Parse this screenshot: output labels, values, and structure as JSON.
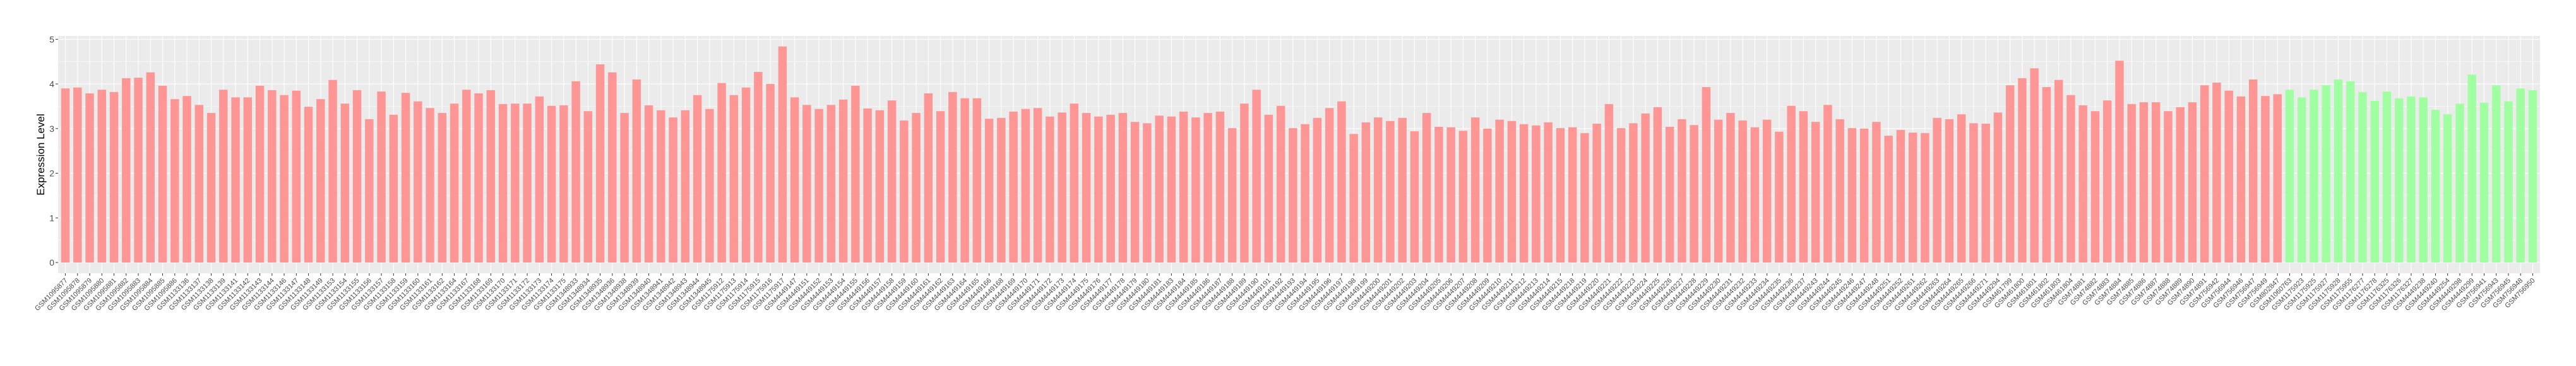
{
  "chart_data": {
    "type": "bar",
    "title": "",
    "xlabel": "",
    "ylabel": "Expression Level",
    "ylim": [
      0,
      5
    ],
    "yticks": [
      "0",
      "1",
      "2",
      "3",
      "4",
      "5"
    ],
    "grid": true,
    "legend": "none",
    "background": "#EBEBEB",
    "series": [
      {
        "color": "#FF9696",
        "categories": [
          "GSM1095877",
          "GSM1095878",
          "GSM1095879",
          "GSM1095880",
          "GSM1095881",
          "GSM1095882",
          "GSM1095883",
          "GSM1095884",
          "GSM1095885",
          "GSM1095886",
          "GSM1133136",
          "GSM1133137",
          "GSM1133138",
          "GSM1133139",
          "GSM1133141",
          "GSM1133142",
          "GSM1133143",
          "GSM1133144",
          "GSM1133146",
          "GSM1133147",
          "GSM1133148",
          "GSM1133149",
          "GSM1133153",
          "GSM1133154",
          "GSM1133155",
          "GSM1133156",
          "GSM1133157",
          "GSM1133158",
          "GSM1133159",
          "GSM1133160",
          "GSM1133161",
          "GSM1133162",
          "GSM1133164",
          "GSM1133167",
          "GSM1133168",
          "GSM1133169",
          "GSM1133170",
          "GSM1133171",
          "GSM1133172",
          "GSM1133173",
          "GSM1133174",
          "GSM1133175",
          "GSM1348933",
          "GSM1348934",
          "GSM1348935",
          "GSM1348936",
          "GSM1348938",
          "GSM1348939",
          "GSM1348940",
          "GSM1348941",
          "GSM1348942",
          "GSM1348943",
          "GSM1348944",
          "GSM1348945",
          "GSM1175912",
          "GSM1175913",
          "GSM1175914",
          "GSM1175915",
          "GSM1175916",
          "GSM1175917",
          "GSM4449147",
          "GSM4449151",
          "GSM4449152",
          "GSM4449153",
          "GSM4449154",
          "GSM4449155",
          "GSM4449156",
          "GSM4449157",
          "GSM4449158",
          "GSM4449159",
          "GSM4449160",
          "GSM4449161",
          "GSM4449162",
          "GSM4449163",
          "GSM4449164",
          "GSM4449165",
          "GSM4449166",
          "GSM4449168",
          "GSM4449169",
          "GSM4449170",
          "GSM4449171",
          "GSM4449172",
          "GSM4449173",
          "GSM4449174",
          "GSM4449175",
          "GSM4449176",
          "GSM4449177",
          "GSM4449178",
          "GSM4449179",
          "GSM4449180",
          "GSM4449181",
          "GSM4449183",
          "GSM4449184",
          "GSM4449185",
          "GSM4449186",
          "GSM4449187",
          "GSM4449188",
          "GSM4449189",
          "GSM4449190",
          "GSM4449191",
          "GSM4449192",
          "GSM4449193",
          "GSM4449194",
          "GSM4449195",
          "GSM4449196",
          "GSM4449197",
          "GSM4449198",
          "GSM4449199",
          "GSM4449200",
          "GSM4449201",
          "GSM4449202",
          "GSM4449203",
          "GSM4449204",
          "GSM4449205",
          "GSM4449206",
          "GSM4449207",
          "GSM4449208",
          "GSM4449209",
          "GSM4449210",
          "GSM4449211",
          "GSM4449212",
          "GSM4449213",
          "GSM4449214",
          "GSM4449215",
          "GSM4449218",
          "GSM4449219",
          "GSM4449220",
          "GSM4449221",
          "GSM4449222",
          "GSM4449223",
          "GSM4449224",
          "GSM4449225",
          "GSM4449226",
          "GSM4449227",
          "GSM4449228",
          "GSM4449229",
          "GSM4449230",
          "GSM4449231",
          "GSM4449232",
          "GSM4449233",
          "GSM4449234",
          "GSM4449235",
          "GSM4449236",
          "GSM4449237",
          "GSM4449243",
          "GSM4449244",
          "GSM4449245",
          "GSM4449246",
          "GSM4449247",
          "GSM4449248",
          "GSM4449251",
          "GSM4449252",
          "GSM4449261",
          "GSM4449262",
          "GSM4449263",
          "GSM4449264",
          "GSM4449265",
          "GSM4449266",
          "GSM4449271",
          "GSM4449294",
          "GSM461799",
          "GSM461800",
          "GSM461801",
          "GSM461802",
          "GSM461803",
          "GSM461804",
          "GSM74881",
          "GSM74882",
          "GSM74883",
          "GSM74884",
          "GSM74885",
          "GSM74886",
          "GSM74887",
          "GSM74888",
          "GSM74889",
          "GSM74890",
          "GSM74891",
          "GSM756942",
          "GSM756944",
          "GSM756946",
          "GSM756947",
          "GSM756949",
          "GSM802847"
        ],
        "values": [
          3.9,
          3.92,
          3.79,
          3.87,
          3.82,
          4.13,
          4.14,
          4.26,
          3.96,
          3.66,
          3.73,
          3.53,
          3.35,
          3.87,
          3.7,
          3.7,
          3.96,
          3.86,
          3.75,
          3.85,
          3.49,
          3.66,
          4.09,
          3.56,
          3.86,
          3.21,
          3.83,
          3.31,
          3.8,
          3.61,
          3.46,
          3.35,
          3.56,
          3.87,
          3.79,
          3.86,
          3.55,
          3.56,
          3.56,
          3.72,
          3.51,
          3.52,
          4.06,
          3.39,
          4.44,
          4.26,
          3.35,
          4.1,
          3.52,
          3.41,
          3.25,
          3.41,
          3.75,
          3.44,
          4.02,
          3.75,
          3.92,
          4.27,
          4.0,
          4.84,
          3.7,
          3.53,
          3.44,
          3.53,
          3.65,
          3.96,
          3.45,
          3.41,
          3.63,
          3.18,
          3.35,
          3.79,
          3.39,
          3.82,
          3.68,
          3.68,
          3.22,
          3.24,
          3.38,
          3.44,
          3.46,
          3.27,
          3.36,
          3.56,
          3.35,
          3.27,
          3.31,
          3.35,
          3.15,
          3.12,
          3.29,
          3.27,
          3.38,
          3.25,
          3.35,
          3.38,
          3.01,
          3.56,
          3.87,
          3.31,
          3.51,
          3.01,
          3.1,
          3.24,
          3.46,
          3.61,
          2.88,
          3.14,
          3.25,
          3.17,
          3.24,
          2.94,
          3.35,
          3.04,
          3.03,
          2.95,
          3.25,
          3.0,
          3.2,
          3.17,
          3.1,
          3.07,
          3.14,
          3.01,
          3.03,
          2.9,
          3.11,
          3.55,
          3.01,
          3.12,
          3.34,
          3.48,
          3.04,
          3.21,
          3.08,
          3.93,
          3.2,
          3.35,
          3.18,
          3.03,
          3.2,
          2.93,
          3.51,
          3.39,
          3.15,
          3.53,
          3.21,
          3.01,
          3.0,
          3.15,
          2.84,
          2.97,
          2.91,
          2.9,
          3.24,
          3.21,
          3.32,
          3.12,
          3.11,
          3.36,
          3.97,
          4.13,
          4.35,
          3.93,
          4.09,
          3.75,
          3.52,
          3.39,
          3.63,
          4.52,
          3.55,
          3.59,
          3.59,
          3.39,
          3.48,
          3.59,
          3.97,
          4.03,
          3.85,
          3.72,
          4.1,
          3.73,
          3.77
        ]
      },
      {
        "color": "#A0FFA0",
        "categories": [
          "GSM1060763",
          "GSM1175923",
          "GSM1175925",
          "GSM1175927",
          "GSM1175928",
          "GSM1175955",
          "GSM1176277",
          "GSM1176278",
          "GSM1176325",
          "GSM1176326",
          "GSM1176327",
          "GSM4449238",
          "GSM4449240",
          "GSM4449254",
          "GSM4449298",
          "GSM4449299",
          "GSM756941",
          "GSM756943",
          "GSM756945",
          "GSM756948",
          "GSM756950"
        ],
        "values": [
          3.87,
          3.7,
          3.87,
          3.97,
          4.1,
          4.06,
          3.82,
          3.62,
          3.83,
          3.68,
          3.72,
          3.7,
          3.42,
          3.32,
          3.56,
          4.21,
          3.58,
          3.97,
          3.61,
          3.9,
          3.86
        ]
      }
    ]
  }
}
